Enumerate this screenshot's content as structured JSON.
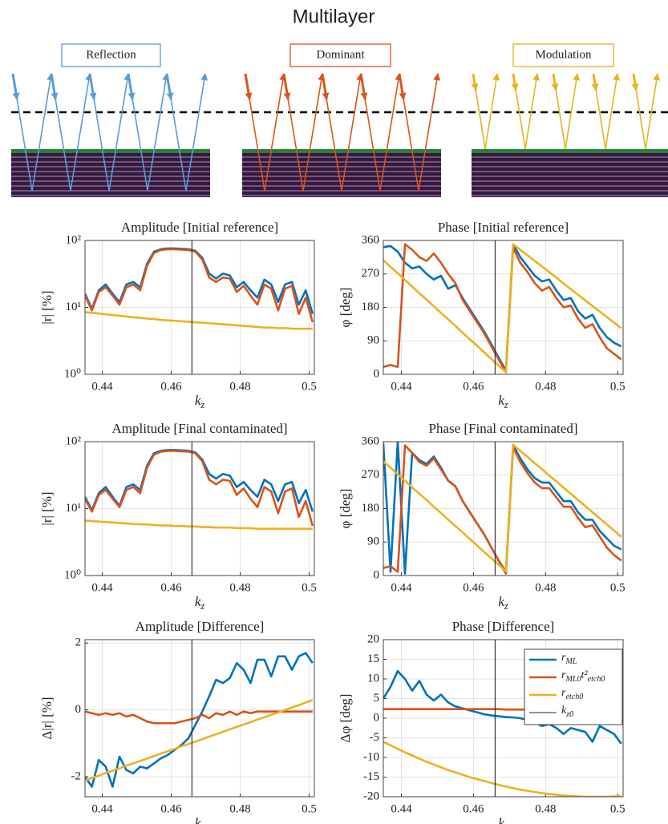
{
  "title": "Multilayer",
  "diagram": {
    "labels": [
      "Reflection",
      "Dominant",
      "Modulation"
    ]
  },
  "chart_data": [
    {
      "type": "line",
      "title": "Amplitude [Initial reference]",
      "xlabel": "kz",
      "ylabel": "|r| [%]",
      "xlim": [
        0.435,
        0.5015
      ],
      "xticks": [
        0.44,
        0.46,
        0.48,
        0.5
      ],
      "ylim": [
        1,
        100
      ],
      "yscale": "log",
      "yticks": [
        {
          "value": 1,
          "label": "10⁰"
        },
        {
          "value": 10,
          "label": "10¹"
        },
        {
          "value": 100,
          "label": "10²"
        }
      ],
      "grid": true,
      "x": [
        0.435,
        0.437,
        0.439,
        0.441,
        0.443,
        0.445,
        0.447,
        0.449,
        0.451,
        0.453,
        0.455,
        0.457,
        0.459,
        0.461,
        0.463,
        0.465,
        0.467,
        0.469,
        0.471,
        0.473,
        0.475,
        0.477,
        0.479,
        0.481,
        0.483,
        0.485,
        0.487,
        0.489,
        0.491,
        0.493,
        0.495,
        0.497,
        0.499,
        0.501
      ],
      "series": [
        {
          "color": "#0072bd",
          "values": [
            16,
            9.5,
            18,
            22,
            16,
            12,
            22,
            24,
            20,
            45,
            68,
            74,
            76,
            76,
            75,
            74,
            70,
            55,
            32,
            27,
            32,
            30,
            20,
            24,
            18,
            14,
            26,
            22,
            12,
            22,
            24,
            11,
            18,
            8
          ]
        },
        {
          "color": "#d95319",
          "values": [
            15,
            9,
            17,
            20,
            15,
            11,
            20,
            22,
            18,
            42,
            65,
            72,
            74,
            74,
            73,
            72,
            68,
            52,
            28,
            24,
            28,
            27,
            17,
            21,
            15,
            11,
            22,
            19,
            9,
            19,
            21,
            8,
            14,
            6
          ]
        },
        {
          "color": "#edb120",
          "values": [
            8.5,
            8.3,
            8.1,
            7.9,
            7.7,
            7.5,
            7.3,
            7.1,
            7.0,
            6.8,
            6.7,
            6.5,
            6.4,
            6.3,
            6.2,
            6.1,
            6.0,
            5.9,
            5.8,
            5.7,
            5.6,
            5.5,
            5.4,
            5.3,
            5.2,
            5.1,
            5.0,
            5.0,
            4.9,
            4.9,
            4.8,
            4.8,
            4.8,
            4.8
          ]
        },
        {
          "color": "#262626",
          "x": [
            0.466,
            0.466
          ],
          "values": [
            1,
            100
          ]
        }
      ]
    },
    {
      "type": "line",
      "title": "Phase [Initial reference]",
      "xlabel": "kz",
      "ylabel": "φ [deg]",
      "xlim": [
        0.435,
        0.5015
      ],
      "xticks": [
        0.44,
        0.46,
        0.48,
        0.5
      ],
      "ylim": [
        0,
        360
      ],
      "yticks": [
        0,
        90,
        180,
        270,
        360
      ],
      "grid": true,
      "x": [
        0.435,
        0.437,
        0.439,
        0.441,
        0.443,
        0.445,
        0.447,
        0.449,
        0.451,
        0.453,
        0.455,
        0.457,
        0.459,
        0.461,
        0.463,
        0.465,
        0.467,
        0.469,
        0.471,
        0.473,
        0.475,
        0.477,
        0.479,
        0.481,
        0.483,
        0.485,
        0.487,
        0.489,
        0.491,
        0.493,
        0.495,
        0.497,
        0.499,
        0.501
      ],
      "series": [
        {
          "color": "#0072bd",
          "values": [
            342,
            345,
            330,
            300,
            285,
            290,
            270,
            255,
            265,
            230,
            240,
            205,
            175,
            145,
            115,
            80,
            45,
            10,
            350,
            315,
            290,
            265,
            250,
            255,
            225,
            200,
            205,
            170,
            150,
            160,
            125,
            100,
            85,
            75
          ]
        },
        {
          "color": "#d95319",
          "values": [
            20,
            25,
            20,
            350,
            335,
            315,
            305,
            325,
            300,
            270,
            245,
            200,
            170,
            140,
            110,
            75,
            40,
            5,
            340,
            300,
            275,
            245,
            225,
            235,
            205,
            180,
            185,
            150,
            125,
            135,
            100,
            70,
            55,
            40
          ]
        },
        {
          "color": "#edb120",
          "values": [
            307,
            289,
            272,
            254,
            236,
            218,
            201,
            183,
            165,
            148,
            130,
            112,
            94,
            77,
            59,
            41,
            23,
            6,
            350,
            335,
            320,
            305,
            290,
            275,
            260,
            244,
            229,
            214,
            199,
            184,
            169,
            154,
            139,
            124
          ]
        },
        {
          "color": "#262626",
          "x": [
            0.466,
            0.466
          ],
          "values": [
            0,
            360
          ]
        }
      ]
    },
    {
      "type": "line",
      "title": "Amplitude [Final contaminated]",
      "xlabel": "kz",
      "ylabel": "|r| [%]",
      "xlim": [
        0.435,
        0.5015
      ],
      "xticks": [
        0.44,
        0.46,
        0.48,
        0.5
      ],
      "ylim": [
        1,
        100
      ],
      "yscale": "log",
      "yticks": [
        {
          "value": 1,
          "label": "10⁰"
        },
        {
          "value": 10,
          "label": "10¹"
        },
        {
          "value": 100,
          "label": "10²"
        }
      ],
      "grid": true,
      "x": [
        0.435,
        0.437,
        0.439,
        0.441,
        0.443,
        0.445,
        0.447,
        0.449,
        0.451,
        0.453,
        0.455,
        0.457,
        0.459,
        0.461,
        0.463,
        0.465,
        0.467,
        0.469,
        0.471,
        0.473,
        0.475,
        0.477,
        0.479,
        0.481,
        0.483,
        0.485,
        0.487,
        0.489,
        0.491,
        0.493,
        0.495,
        0.497,
        0.499,
        0.501
      ],
      "series": [
        {
          "color": "#0072bd",
          "values": [
            15,
            9.5,
            17,
            21,
            15,
            11,
            21,
            23,
            19,
            44,
            67,
            73,
            75,
            75,
            74,
            73,
            69,
            54,
            33,
            28,
            33,
            31,
            21,
            25,
            19,
            15,
            27,
            23,
            13,
            23,
            25,
            12,
            19,
            9
          ]
        },
        {
          "color": "#d95319",
          "values": [
            14,
            9,
            16,
            19,
            14,
            10.5,
            19,
            21,
            17,
            41,
            64,
            71,
            73,
            73,
            72,
            71,
            67,
            51,
            27,
            23,
            27,
            26,
            16,
            20,
            14,
            10.5,
            21,
            18,
            8.5,
            18,
            20,
            7.5,
            13,
            5.5
          ]
        },
        {
          "color": "#edb120",
          "values": [
            6.6,
            6.5,
            6.4,
            6.3,
            6.2,
            6.1,
            6.0,
            5.9,
            5.8,
            5.8,
            5.7,
            5.6,
            5.6,
            5.5,
            5.5,
            5.4,
            5.4,
            5.3,
            5.3,
            5.2,
            5.2,
            5.2,
            5.1,
            5.1,
            5.1,
            5.0,
            5.0,
            5.0,
            5.0,
            5.0,
            5.0,
            5.0,
            5.0,
            5.0
          ]
        },
        {
          "color": "#262626",
          "x": [
            0.466,
            0.466
          ],
          "values": [
            1,
            100
          ]
        }
      ]
    },
    {
      "type": "line",
      "title": "Phase [Final contaminated]",
      "xlabel": "kz",
      "ylabel": "φ [deg]",
      "xlim": [
        0.435,
        0.5015
      ],
      "xticks": [
        0.44,
        0.46,
        0.48,
        0.5
      ],
      "ylim": [
        0,
        360
      ],
      "yticks": [
        0,
        90,
        180,
        270,
        360
      ],
      "grid": true,
      "x": [
        0.435,
        0.437,
        0.439,
        0.441,
        0.443,
        0.445,
        0.447,
        0.449,
        0.451,
        0.453,
        0.455,
        0.457,
        0.459,
        0.461,
        0.463,
        0.465,
        0.467,
        0.469,
        0.471,
        0.473,
        0.475,
        0.477,
        0.479,
        0.481,
        0.483,
        0.485,
        0.487,
        0.489,
        0.491,
        0.493,
        0.495,
        0.497,
        0.499,
        0.501
      ],
      "series": [
        {
          "color": "#0072bd",
          "values": [
            355,
            10,
            360,
            5,
            330,
            310,
            300,
            320,
            290,
            255,
            240,
            200,
            170,
            140,
            110,
            75,
            40,
            10,
            350,
            315,
            285,
            262,
            250,
            250,
            225,
            200,
            200,
            170,
            150,
            150,
            120,
            100,
            80,
            70
          ]
        },
        {
          "color": "#d95319",
          "values": [
            20,
            25,
            10,
            350,
            330,
            305,
            295,
            315,
            285,
            255,
            240,
            200,
            170,
            140,
            110,
            75,
            40,
            5,
            345,
            305,
            275,
            250,
            235,
            235,
            210,
            185,
            185,
            155,
            130,
            135,
            105,
            75,
            55,
            40
          ]
        },
        {
          "color": "#edb120",
          "values": [
            307,
            290,
            272,
            255,
            237,
            220,
            203,
            185,
            168,
            150,
            133,
            116,
            98,
            81,
            63,
            46,
            29,
            11,
            352,
            335,
            319,
            302,
            286,
            269,
            253,
            236,
            220,
            203,
            187,
            170,
            154,
            137,
            121,
            104
          ]
        },
        {
          "color": "#262626",
          "x": [
            0.466,
            0.466
          ],
          "values": [
            0,
            360
          ]
        }
      ]
    },
    {
      "type": "line",
      "title": "Amplitude [Difference]",
      "xlabel": "kz",
      "ylabel": "Δ|r| [%]",
      "xlim": [
        0.435,
        0.5015
      ],
      "xticks": [
        0.44,
        0.46,
        0.48,
        0.5
      ],
      "ylim": [
        -2.6,
        2.1
      ],
      "yticks": [
        -2,
        0,
        2
      ],
      "grid": true,
      "x": [
        0.435,
        0.437,
        0.439,
        0.441,
        0.443,
        0.445,
        0.447,
        0.449,
        0.451,
        0.453,
        0.455,
        0.457,
        0.459,
        0.461,
        0.463,
        0.465,
        0.467,
        0.469,
        0.471,
        0.473,
        0.475,
        0.477,
        0.479,
        0.481,
        0.483,
        0.485,
        0.487,
        0.489,
        0.491,
        0.493,
        0.495,
        0.497,
        0.499,
        0.501
      ],
      "series": [
        {
          "color": "#0072bd",
          "values": [
            -2.0,
            -2.3,
            -1.5,
            -1.7,
            -2.3,
            -1.4,
            -1.8,
            -1.9,
            -1.7,
            -1.75,
            -1.6,
            -1.45,
            -1.35,
            -1.2,
            -1.05,
            -0.85,
            -0.45,
            -0.05,
            0.4,
            0.9,
            0.8,
            0.95,
            1.4,
            1.2,
            0.8,
            1.5,
            1.5,
            1.0,
            1.6,
            1.6,
            1.2,
            1.6,
            1.7,
            1.4
          ]
        },
        {
          "color": "#d95319",
          "values": [
            -0.05,
            -0.1,
            -0.15,
            -0.1,
            -0.15,
            -0.1,
            -0.2,
            -0.15,
            -0.25,
            -0.35,
            -0.4,
            -0.4,
            -0.4,
            -0.4,
            -0.35,
            -0.3,
            -0.25,
            -0.15,
            -0.25,
            -0.1,
            -0.15,
            -0.05,
            -0.15,
            -0.05,
            -0.1,
            -0.05,
            -0.05,
            -0.05,
            -0.05,
            -0.05,
            -0.05,
            -0.05,
            -0.05,
            -0.05
          ]
        },
        {
          "color": "#edb120",
          "values": [
            -2.11,
            -2.04,
            -1.97,
            -1.89,
            -1.82,
            -1.75,
            -1.67,
            -1.6,
            -1.53,
            -1.46,
            -1.38,
            -1.31,
            -1.24,
            -1.17,
            -1.09,
            -1.02,
            -0.95,
            -0.88,
            -0.8,
            -0.73,
            -0.66,
            -0.58,
            -0.51,
            -0.44,
            -0.37,
            -0.29,
            -0.22,
            -0.15,
            -0.08,
            0,
            0.07,
            0.14,
            0.22,
            0.29
          ]
        },
        {
          "color": "#262626",
          "x": [
            0.466,
            0.466
          ],
          "values": [
            -2.6,
            2.1
          ]
        }
      ]
    },
    {
      "type": "line",
      "title": "Phase [Difference]",
      "xlabel": "kz",
      "ylabel": "Δφ [deg]",
      "xlim": [
        0.435,
        0.5015
      ],
      "xticks": [
        0.44,
        0.46,
        0.48,
        0.5
      ],
      "ylim": [
        -20,
        20
      ],
      "yticks": [
        -20,
        -15,
        -10,
        -5,
        0,
        5,
        10,
        15,
        20
      ],
      "grid": true,
      "legend": "northeast",
      "x": [
        0.435,
        0.437,
        0.439,
        0.441,
        0.443,
        0.445,
        0.447,
        0.449,
        0.451,
        0.453,
        0.455,
        0.457,
        0.459,
        0.461,
        0.463,
        0.465,
        0.467,
        0.469,
        0.471,
        0.473,
        0.475,
        0.477,
        0.479,
        0.481,
        0.483,
        0.485,
        0.487,
        0.489,
        0.491,
        0.493,
        0.495,
        0.497,
        0.499,
        0.501
      ],
      "series": [
        {
          "name": "rML",
          "color": "#0072bd",
          "values": [
            5,
            8,
            12,
            10,
            7,
            9.5,
            6,
            4.5,
            6,
            4,
            3,
            2.5,
            2,
            1.5,
            1,
            0.7,
            0.5,
            0.3,
            0.2,
            0,
            -0.5,
            -1,
            -2,
            -1.5,
            -2.5,
            -4,
            -2.5,
            -3,
            -3.5,
            -6,
            -2,
            -3,
            -4,
            -6.5
          ]
        },
        {
          "name": "rML0t²etch0",
          "color": "#d95319",
          "values": [
            2.3,
            2.3,
            2.3,
            2.3,
            2.3,
            2.3,
            2.3,
            2.3,
            2.3,
            2.3,
            2.3,
            2.3,
            2.3,
            2.3,
            2.3,
            2.3,
            2.3,
            2.2,
            2.2,
            2.2,
            2.2,
            2.2,
            2.2,
            2.2,
            2.2,
            2.2,
            2.2,
            2.2,
            2.2,
            2.1,
            2.1,
            2.1,
            2.1,
            2.1
          ]
        },
        {
          "name": "retch0",
          "color": "#edb120",
          "values": [
            -6.0,
            -6.9,
            -7.8,
            -8.7,
            -9.5,
            -10.3,
            -11.1,
            -11.8,
            -12.5,
            -13.2,
            -13.8,
            -14.4,
            -15.0,
            -15.5,
            -16.0,
            -16.5,
            -17.0,
            -17.4,
            -17.8,
            -18.2,
            -18.5,
            -18.8,
            -19.1,
            -19.3,
            -19.5,
            -19.7,
            -19.8,
            -19.9,
            -20.0,
            -20.0,
            -20.0,
            -20.0,
            -19.9,
            -19.8
          ]
        },
        {
          "name": "kz0",
          "color": "#262626",
          "x": [
            0.466,
            0.466
          ],
          "values": [
            -20,
            20
          ]
        }
      ]
    }
  ]
}
